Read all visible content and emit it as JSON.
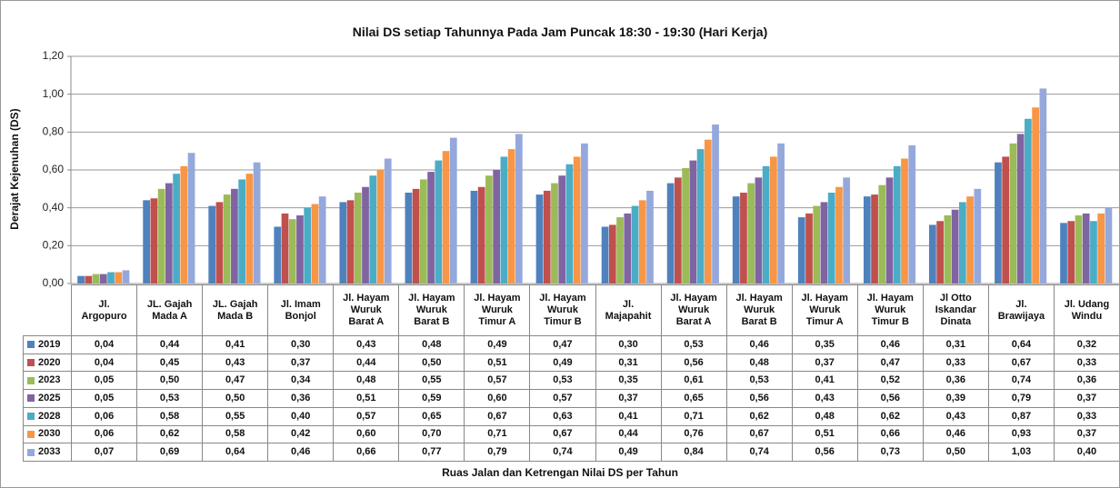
{
  "chart_data": {
    "type": "bar",
    "title": "Nilai  DS setiap Tahunnya Pada Jam  Puncak  18:30 - 19:30  (Hari  Kerja)",
    "ylabel": "Derajat Kejenuhan (DS)",
    "xlabel": "Ruas Jalan dan Ketrengan Nilai DS per Tahun",
    "categories": [
      "Jl.\nArgopuro",
      "JL. Gajah\nMada A",
      "JL. Gajah\nMada B",
      "Jl. Imam\nBonjol",
      "Jl. Hayam\nWuruk\nBarat A",
      "Jl. Hayam\nWuruk\nBarat B",
      "Jl. Hayam\nWuruk\nTimur A",
      "Jl. Hayam\nWuruk\nTimur B",
      "Jl.\nMajapahit",
      "Jl. Hayam\nWuruk\nBarat A",
      "Jl. Hayam\nWuruk\nBarat B",
      "Jl. Hayam\nWuruk\nTimur A",
      "Jl. Hayam\nWuruk\nTimur B",
      "Jl Otto\nIskandar\nDinata",
      "Jl.\nBrawijaya",
      "Jl. Udang\nWindu"
    ],
    "ylim": [
      0,
      1.2
    ],
    "yticks": [
      {
        "value": 0,
        "label": "0,00"
      },
      {
        "value": 0.2,
        "label": "0,20"
      },
      {
        "value": 0.4,
        "label": "0,40"
      },
      {
        "value": 0.6,
        "label": "0,60"
      },
      {
        "value": 0.8,
        "label": "0,80"
      },
      {
        "value": 1.0,
        "label": "1,00"
      },
      {
        "value": 1.2,
        "label": "1,20"
      }
    ],
    "grid": true,
    "series": [
      {
        "name": "2019",
        "color": "#4f81bd",
        "values": [
          0.04,
          0.44,
          0.41,
          0.3,
          0.43,
          0.48,
          0.49,
          0.47,
          0.3,
          0.53,
          0.46,
          0.35,
          0.46,
          0.31,
          0.64,
          0.32
        ],
        "value_labels": [
          "0,04",
          "0,44",
          "0,41",
          "0,30",
          "0,43",
          "0,48",
          "0,49",
          "0,47",
          "0,30",
          "0,53",
          "0,46",
          "0,35",
          "0,46",
          "0,31",
          "0,64",
          "0,32"
        ]
      },
      {
        "name": "2020",
        "color": "#c0504d",
        "values": [
          0.04,
          0.45,
          0.43,
          0.37,
          0.44,
          0.5,
          0.51,
          0.49,
          0.31,
          0.56,
          0.48,
          0.37,
          0.47,
          0.33,
          0.67,
          0.33
        ],
        "value_labels": [
          "0,04",
          "0,45",
          "0,43",
          "0,37",
          "0,44",
          "0,50",
          "0,51",
          "0,49",
          "0,31",
          "0,56",
          "0,48",
          "0,37",
          "0,47",
          "0,33",
          "0,67",
          "0,33"
        ]
      },
      {
        "name": "2023",
        "color": "#9bbb59",
        "values": [
          0.05,
          0.5,
          0.47,
          0.34,
          0.48,
          0.55,
          0.57,
          0.53,
          0.35,
          0.61,
          0.53,
          0.41,
          0.52,
          0.36,
          0.74,
          0.36
        ],
        "value_labels": [
          "0,05",
          "0,50",
          "0,47",
          "0,34",
          "0,48",
          "0,55",
          "0,57",
          "0,53",
          "0,35",
          "0,61",
          "0,53",
          "0,41",
          "0,52",
          "0,36",
          "0,74",
          "0,36"
        ]
      },
      {
        "name": "2025",
        "color": "#8064a2",
        "values": [
          0.05,
          0.53,
          0.5,
          0.36,
          0.51,
          0.59,
          0.6,
          0.57,
          0.37,
          0.65,
          0.56,
          0.43,
          0.56,
          0.39,
          0.79,
          0.37
        ],
        "value_labels": [
          "0,05",
          "0,53",
          "0,50",
          "0,36",
          "0,51",
          "0,59",
          "0,60",
          "0,57",
          "0,37",
          "0,65",
          "0,56",
          "0,43",
          "0,56",
          "0,39",
          "0,79",
          "0,37"
        ]
      },
      {
        "name": "2028",
        "color": "#4bacc6",
        "values": [
          0.06,
          0.58,
          0.55,
          0.4,
          0.57,
          0.65,
          0.67,
          0.63,
          0.41,
          0.71,
          0.62,
          0.48,
          0.62,
          0.43,
          0.87,
          0.33
        ],
        "value_labels": [
          "0,06",
          "0,58",
          "0,55",
          "0,40",
          "0,57",
          "0,65",
          "0,67",
          "0,63",
          "0,41",
          "0,71",
          "0,62",
          "0,48",
          "0,62",
          "0,43",
          "0,87",
          "0,33"
        ]
      },
      {
        "name": "2030",
        "color": "#f79646",
        "values": [
          0.06,
          0.62,
          0.58,
          0.42,
          0.6,
          0.7,
          0.71,
          0.67,
          0.44,
          0.76,
          0.67,
          0.51,
          0.66,
          0.46,
          0.93,
          0.37
        ],
        "value_labels": [
          "0,06",
          "0,62",
          "0,58",
          "0,42",
          "0,60",
          "0,70",
          "0,71",
          "0,67",
          "0,44",
          "0,76",
          "0,67",
          "0,51",
          "0,66",
          "0,46",
          "0,93",
          "0,37"
        ]
      },
      {
        "name": "2033",
        "color": "#95a8dc",
        "values": [
          0.07,
          0.69,
          0.64,
          0.46,
          0.66,
          0.77,
          0.79,
          0.74,
          0.49,
          0.84,
          0.74,
          0.56,
          0.73,
          0.5,
          1.03,
          0.4
        ],
        "value_labels": [
          "0,07",
          "0,69",
          "0,64",
          "0,46",
          "0,66",
          "0,77",
          "0,79",
          "0,74",
          "0,49",
          "0,84",
          "0,74",
          "0,56",
          "0,73",
          "0,50",
          "1,03",
          "0,40"
        ]
      }
    ]
  }
}
